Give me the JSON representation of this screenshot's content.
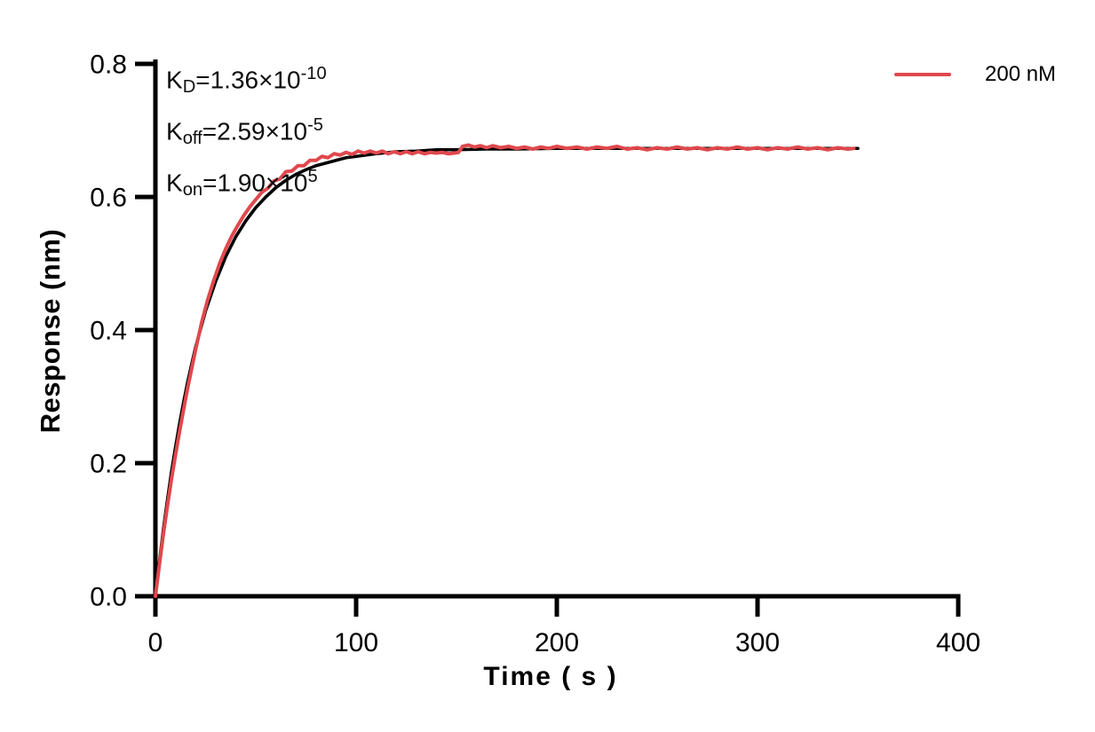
{
  "figure": {
    "ylabel": "Response (nm)",
    "xlabel": "Time ( s )",
    "legend": [
      {
        "label": "200 nM",
        "color": "#E0484D"
      }
    ],
    "annotations": [
      {
        "base": "K",
        "sub": "D",
        "mid": "=1.36×10",
        "sup": "-10"
      },
      {
        "base": "K",
        "sub": "off",
        "mid": "=2.59×10",
        "sup": "-5"
      },
      {
        "base": "K",
        "sub": "on",
        "mid": "=1.90×10",
        "sup": "5"
      }
    ]
  },
  "chart_data": {
    "type": "line",
    "title": "",
    "xlabel": "Time ( s )",
    "ylabel": "Response (nm)",
    "xlim": [
      0,
      400
    ],
    "ylim": [
      0,
      0.8
    ],
    "xtick_values": [
      0,
      100,
      200,
      300,
      400
    ],
    "xtick_labels": [
      "0",
      "100",
      "200",
      "300",
      "400"
    ],
    "ytick_values": [
      0,
      0.2,
      0.4,
      0.6,
      0.8
    ],
    "ytick_labels": [
      "0.0",
      "0.2",
      "0.4",
      "0.6",
      "0.8"
    ],
    "grid": false,
    "legend_position": "top-right",
    "kinetics": {
      "KD": 1.36e-10,
      "Koff": 2.59e-05,
      "Kon": 190000.0
    },
    "axis_color": "#000000",
    "series": [
      {
        "name": "200 nM",
        "role": "data",
        "color": "#E0484D",
        "x": [
          0,
          2,
          4,
          6,
          8,
          10,
          12,
          14,
          16,
          18,
          20,
          23,
          26,
          29,
          32,
          35,
          38,
          41,
          44,
          47,
          50,
          53,
          56,
          59,
          62,
          65,
          68,
          71,
          74,
          77,
          80,
          83,
          86,
          89,
          92,
          95,
          98,
          101,
          104,
          107,
          110,
          113,
          116,
          119,
          122,
          125,
          128,
          131,
          134,
          137,
          140,
          143,
          146,
          149,
          151,
          153,
          156,
          159,
          162,
          165,
          168,
          172,
          176,
          180,
          184,
          188,
          192,
          196,
          200,
          205,
          210,
          215,
          220,
          225,
          230,
          235,
          240,
          245,
          250,
          255,
          260,
          265,
          270,
          275,
          280,
          285,
          290,
          295,
          300,
          305,
          310,
          315,
          320,
          325,
          330,
          335,
          340,
          345,
          348
        ],
        "y": [
          0.0,
          0.048,
          0.094,
          0.136,
          0.176,
          0.212,
          0.247,
          0.28,
          0.312,
          0.341,
          0.37,
          0.411,
          0.445,
          0.474,
          0.5,
          0.522,
          0.541,
          0.557,
          0.572,
          0.585,
          0.596,
          0.607,
          0.613,
          0.624,
          0.627,
          0.638,
          0.639,
          0.647,
          0.647,
          0.655,
          0.655,
          0.661,
          0.659,
          0.665,
          0.663,
          0.667,
          0.664,
          0.669,
          0.666,
          0.669,
          0.666,
          0.669,
          0.665,
          0.668,
          0.665,
          0.668,
          0.665,
          0.668,
          0.665,
          0.667,
          0.666,
          0.667,
          0.665,
          0.666,
          0.667,
          0.676,
          0.678,
          0.675,
          0.677,
          0.674,
          0.677,
          0.674,
          0.676,
          0.673,
          0.675,
          0.672,
          0.675,
          0.673,
          0.676,
          0.673,
          0.675,
          0.672,
          0.675,
          0.673,
          0.676,
          0.672,
          0.674,
          0.671,
          0.674,
          0.672,
          0.675,
          0.672,
          0.674,
          0.671,
          0.674,
          0.672,
          0.675,
          0.672,
          0.674,
          0.671,
          0.674,
          0.672,
          0.675,
          0.672,
          0.674,
          0.671,
          0.674,
          0.672,
          0.673
        ]
      },
      {
        "name": "fit",
        "role": "fit",
        "color": "#000000",
        "x": [
          0,
          2,
          4,
          6,
          8,
          10,
          12,
          14,
          16,
          18,
          20,
          25,
          30,
          35,
          40,
          45,
          50,
          55,
          60,
          65,
          70,
          75,
          80,
          85,
          90,
          95,
          100,
          110,
          120,
          130,
          140,
          150,
          165,
          180,
          200,
          225,
          250,
          275,
          300,
          325,
          350
        ],
        "y": [
          0.0,
          0.052,
          0.101,
          0.145,
          0.187,
          0.224,
          0.259,
          0.291,
          0.321,
          0.348,
          0.374,
          0.429,
          0.473,
          0.51,
          0.54,
          0.564,
          0.584,
          0.6,
          0.614,
          0.625,
          0.634,
          0.641,
          0.647,
          0.651,
          0.655,
          0.659,
          0.661,
          0.665,
          0.668,
          0.669,
          0.671,
          0.671,
          0.672,
          0.672,
          0.673,
          0.673,
          0.673,
          0.673,
          0.673,
          0.673,
          0.673
        ]
      }
    ]
  }
}
